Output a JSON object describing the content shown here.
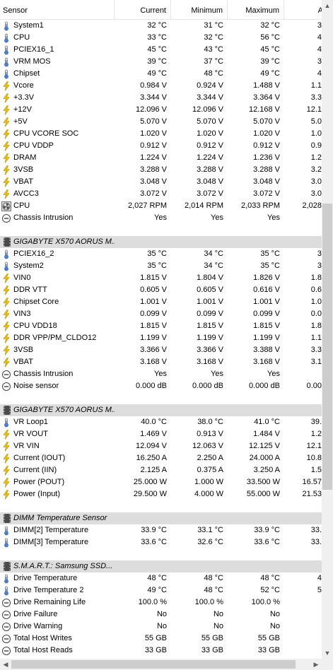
{
  "columns": {
    "sensor": "Sensor",
    "current": "Current",
    "minimum": "Minimum",
    "maximum": "Maximum",
    "average": "Aver"
  },
  "colors": {
    "thermometer": "#4a7fd6",
    "voltage": "#f2c200",
    "fan": "#555555",
    "status": "#444444",
    "group_bg": "#dddddd"
  },
  "rows": [
    {
      "kind": "sensor",
      "icon": "thermometer-icon",
      "name": "System1",
      "cur": "32 °C",
      "min": "31 °C",
      "max": "32 °C",
      "avg": "3"
    },
    {
      "kind": "sensor",
      "icon": "thermometer-icon",
      "name": "CPU",
      "cur": "33 °C",
      "min": "32 °C",
      "max": "56 °C",
      "avg": "4"
    },
    {
      "kind": "sensor",
      "icon": "thermometer-icon",
      "name": "PCIEX16_1",
      "cur": "45 °C",
      "min": "43 °C",
      "max": "45 °C",
      "avg": "4"
    },
    {
      "kind": "sensor",
      "icon": "thermometer-icon",
      "name": "VRM MOS",
      "cur": "39 °C",
      "min": "37 °C",
      "max": "39 °C",
      "avg": "3"
    },
    {
      "kind": "sensor",
      "icon": "thermometer-icon",
      "name": "Chipset",
      "cur": "49 °C",
      "min": "48 °C",
      "max": "49 °C",
      "avg": "4"
    },
    {
      "kind": "sensor",
      "icon": "lightning-icon",
      "name": "Vcore",
      "cur": "0.984 V",
      "min": "0.924 V",
      "max": "1.488 V",
      "avg": "1.1"
    },
    {
      "kind": "sensor",
      "icon": "lightning-icon",
      "name": "+3.3V",
      "cur": "3.344 V",
      "min": "3.344 V",
      "max": "3.364 V",
      "avg": "3.3"
    },
    {
      "kind": "sensor",
      "icon": "lightning-icon",
      "name": "+12V",
      "cur": "12.096 V",
      "min": "12.096 V",
      "max": "12.168 V",
      "avg": "12.1"
    },
    {
      "kind": "sensor",
      "icon": "lightning-icon",
      "name": "+5V",
      "cur": "5.070 V",
      "min": "5.070 V",
      "max": "5.070 V",
      "avg": "5.0"
    },
    {
      "kind": "sensor",
      "icon": "lightning-icon",
      "name": "CPU VCORE SOC",
      "cur": "1.020 V",
      "min": "1.020 V",
      "max": "1.020 V",
      "avg": "1.0"
    },
    {
      "kind": "sensor",
      "icon": "lightning-icon",
      "name": "CPU VDDP",
      "cur": "0.912 V",
      "min": "0.912 V",
      "max": "0.912 V",
      "avg": "0.9"
    },
    {
      "kind": "sensor",
      "icon": "lightning-icon",
      "name": "DRAM",
      "cur": "1.224 V",
      "min": "1.224 V",
      "max": "1.236 V",
      "avg": "1.2"
    },
    {
      "kind": "sensor",
      "icon": "lightning-icon",
      "name": "3VSB",
      "cur": "3.288 V",
      "min": "3.288 V",
      "max": "3.288 V",
      "avg": "3.2"
    },
    {
      "kind": "sensor",
      "icon": "lightning-icon",
      "name": "VBAT",
      "cur": "3.048 V",
      "min": "3.048 V",
      "max": "3.048 V",
      "avg": "3.0"
    },
    {
      "kind": "sensor",
      "icon": "lightning-icon",
      "name": "AVCC3",
      "cur": "3.072 V",
      "min": "3.072 V",
      "max": "3.072 V",
      "avg": "3.0"
    },
    {
      "kind": "sensor",
      "icon": "fan-icon",
      "name": "CPU",
      "cur": "2,027 RPM",
      "min": "2,014 RPM",
      "max": "2,033 RPM",
      "avg": "2,028"
    },
    {
      "kind": "sensor",
      "icon": "status-icon",
      "name": "Chassis Intrusion",
      "cur": "Yes",
      "min": "Yes",
      "max": "Yes",
      "avg": ""
    },
    {
      "kind": "blank"
    },
    {
      "kind": "group",
      "name": "GIGABYTE X570 AORUS M..."
    },
    {
      "kind": "sensor",
      "icon": "thermometer-icon",
      "name": "PCIEX16_2",
      "cur": "35 °C",
      "min": "34 °C",
      "max": "35 °C",
      "avg": "3"
    },
    {
      "kind": "sensor",
      "icon": "thermometer-icon",
      "name": "System2",
      "cur": "35 °C",
      "min": "34 °C",
      "max": "35 °C",
      "avg": "3"
    },
    {
      "kind": "sensor",
      "icon": "lightning-icon",
      "name": "VIN0",
      "cur": "1.815 V",
      "min": "1.804 V",
      "max": "1.826 V",
      "avg": "1.8"
    },
    {
      "kind": "sensor",
      "icon": "lightning-icon",
      "name": "DDR VTT",
      "cur": "0.605 V",
      "min": "0.605 V",
      "max": "0.616 V",
      "avg": "0.6"
    },
    {
      "kind": "sensor",
      "icon": "lightning-icon",
      "name": "Chipset Core",
      "cur": "1.001 V",
      "min": "1.001 V",
      "max": "1.001 V",
      "avg": "1.0"
    },
    {
      "kind": "sensor",
      "icon": "lightning-icon",
      "name": "VIN3",
      "cur": "0.099 V",
      "min": "0.099 V",
      "max": "0.099 V",
      "avg": "0.0"
    },
    {
      "kind": "sensor",
      "icon": "lightning-icon",
      "name": "CPU VDD18",
      "cur": "1.815 V",
      "min": "1.815 V",
      "max": "1.815 V",
      "avg": "1.8"
    },
    {
      "kind": "sensor",
      "icon": "lightning-icon",
      "name": "DDR VPP/PM_CLDO12",
      "cur": "1.199 V",
      "min": "1.199 V",
      "max": "1.199 V",
      "avg": "1.1"
    },
    {
      "kind": "sensor",
      "icon": "lightning-icon",
      "name": "3VSB",
      "cur": "3.366 V",
      "min": "3.366 V",
      "max": "3.388 V",
      "avg": "3.3"
    },
    {
      "kind": "sensor",
      "icon": "lightning-icon",
      "name": "VBAT",
      "cur": "3.168 V",
      "min": "3.168 V",
      "max": "3.168 V",
      "avg": "3.1"
    },
    {
      "kind": "sensor",
      "icon": "status-icon",
      "name": "Chassis Intrusion",
      "cur": "Yes",
      "min": "Yes",
      "max": "Yes",
      "avg": ""
    },
    {
      "kind": "sensor",
      "icon": "status-icon",
      "name": "Noise sensor",
      "cur": "0.000 dB",
      "min": "0.000 dB",
      "max": "0.000 dB",
      "avg": "0.00"
    },
    {
      "kind": "blank"
    },
    {
      "kind": "group",
      "name": "GIGABYTE X570 AORUS M..."
    },
    {
      "kind": "sensor",
      "icon": "thermometer-icon",
      "name": "VR Loop1",
      "cur": "40.0 °C",
      "min": "38.0 °C",
      "max": "41.0 °C",
      "avg": "39."
    },
    {
      "kind": "sensor",
      "icon": "lightning-icon",
      "name": "VR VOUT",
      "cur": "1.469 V",
      "min": "0.913 V",
      "max": "1.484 V",
      "avg": "1.2"
    },
    {
      "kind": "sensor",
      "icon": "lightning-icon",
      "name": "VR VIN",
      "cur": "12.094 V",
      "min": "12.063 V",
      "max": "12.125 V",
      "avg": "12.1"
    },
    {
      "kind": "sensor",
      "icon": "lightning-icon",
      "name": "Current (IOUT)",
      "cur": "16.250 A",
      "min": "2.250 A",
      "max": "24.000 A",
      "avg": "10.8"
    },
    {
      "kind": "sensor",
      "icon": "lightning-icon",
      "name": "Current (IIN)",
      "cur": "2.125 A",
      "min": "0.375 A",
      "max": "3.250 A",
      "avg": "1.5"
    },
    {
      "kind": "sensor",
      "icon": "lightning-icon",
      "name": "Power (POUT)",
      "cur": "25.000 W",
      "min": "1.000 W",
      "max": "33.500 W",
      "avg": "16.57"
    },
    {
      "kind": "sensor",
      "icon": "lightning-icon",
      "name": "Power (Input)",
      "cur": "29.500 W",
      "min": "4.000 W",
      "max": "55.000 W",
      "avg": "21.53"
    },
    {
      "kind": "blank"
    },
    {
      "kind": "group",
      "name": "DIMM Temperature Sensor"
    },
    {
      "kind": "sensor",
      "icon": "thermometer-icon",
      "name": "DIMM[2] Temperature",
      "cur": "33.9 °C",
      "min": "33.1 °C",
      "max": "33.9 °C",
      "avg": "33."
    },
    {
      "kind": "sensor",
      "icon": "thermometer-icon",
      "name": "DIMM[3] Temperature",
      "cur": "33.6 °C",
      "min": "32.6 °C",
      "max": "33.6 °C",
      "avg": "33."
    },
    {
      "kind": "blank"
    },
    {
      "kind": "group",
      "name": "S.M.A.R.T.: Samsung SSD..."
    },
    {
      "kind": "sensor",
      "icon": "thermometer-icon",
      "name": "Drive Temperature",
      "cur": "48 °C",
      "min": "48 °C",
      "max": "48 °C",
      "avg": "4"
    },
    {
      "kind": "sensor",
      "icon": "thermometer-icon",
      "name": "Drive Temperature 2",
      "cur": "49 °C",
      "min": "48 °C",
      "max": "52 °C",
      "avg": "5"
    },
    {
      "kind": "sensor",
      "icon": "status-icon",
      "name": "Drive Remaining Life",
      "cur": "100.0 %",
      "min": "100.0 %",
      "max": "100.0 %",
      "avg": ""
    },
    {
      "kind": "sensor",
      "icon": "status-icon",
      "name": "Drive Failure",
      "cur": "No",
      "min": "No",
      "max": "No",
      "avg": ""
    },
    {
      "kind": "sensor",
      "icon": "status-icon",
      "name": "Drive Warning",
      "cur": "No",
      "min": "No",
      "max": "No",
      "avg": ""
    },
    {
      "kind": "sensor",
      "icon": "status-icon",
      "name": "Total Host Writes",
      "cur": "55 GB",
      "min": "55 GB",
      "max": "55 GB",
      "avg": ""
    },
    {
      "kind": "sensor",
      "icon": "status-icon",
      "name": "Total Host Reads",
      "cur": "33 GB",
      "min": "33 GB",
      "max": "33 GB",
      "avg": ""
    }
  ],
  "scrollbar": {
    "vertical_position": 0.55,
    "vertical_visible_fraction": 0.45,
    "horizontal_position": 0.0,
    "horizontal_visible_fraction": 0.95
  }
}
